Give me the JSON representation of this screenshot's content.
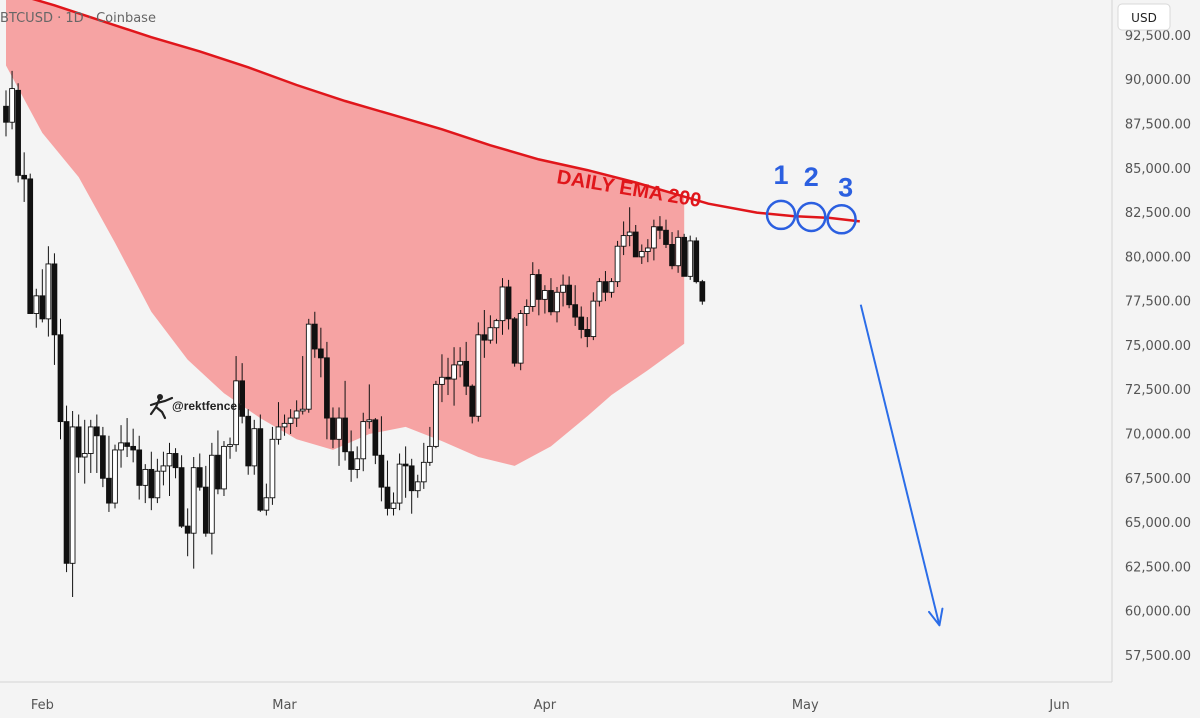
{
  "header": {
    "symbol": "BTCUSD",
    "timeframe": "1D",
    "exchange": "Coinbase",
    "separator": "·"
  },
  "currency": "USD",
  "watermark": "@rektfencer",
  "chart_data": {
    "type": "candlestick",
    "x_tick_labels": [
      "Feb",
      "Mar",
      "Apr",
      "May",
      "Jun"
    ],
    "y_tick_labels": [
      "92,500.00",
      "90,000.00",
      "87,500.00",
      "85,000.00",
      "82,500.00",
      "80,000.00",
      "77,500.00",
      "75,000.00",
      "72,500.00",
      "70,000.00",
      "67,500.00",
      "65,000.00",
      "62,500.00",
      "60,000.00",
      "57,500.00"
    ],
    "ylim": [
      56000,
      94500
    ],
    "grid": false,
    "candle_colors": {
      "up": "#ffffff",
      "down": "#111111",
      "outline": "#111111"
    },
    "candles_ohlc": [
      [
        88500,
        89400,
        86800,
        87600
      ],
      [
        87600,
        90500,
        87200,
        89500
      ],
      [
        89400,
        89800,
        84200,
        84600
      ],
      [
        84600,
        85900,
        83100,
        84400
      ],
      [
        84400,
        84700,
        76800,
        76800
      ],
      [
        76800,
        78200,
        76000,
        77800
      ],
      [
        77800,
        79300,
        76300,
        76500
      ],
      [
        76500,
        80600,
        75500,
        79600
      ],
      [
        79600,
        80200,
        73900,
        75600
      ],
      [
        75600,
        76500,
        69700,
        70700
      ],
      [
        70700,
        71600,
        62200,
        62700
      ],
      [
        62700,
        71300,
        60800,
        70400
      ],
      [
        70400,
        71100,
        67800,
        68700
      ],
      [
        68700,
        70800,
        67200,
        68900
      ],
      [
        68900,
        70800,
        67800,
        70400
      ],
      [
        70400,
        71100,
        67800,
        69900
      ],
      [
        69900,
        70400,
        67000,
        67500
      ],
      [
        67500,
        69900,
        65600,
        66100
      ],
      [
        66100,
        69400,
        65800,
        69100
      ],
      [
        69100,
        70500,
        68100,
        69500
      ],
      [
        69500,
        70900,
        68700,
        69300
      ],
      [
        69300,
        70300,
        68400,
        69100
      ],
      [
        69100,
        69900,
        66300,
        67100
      ],
      [
        67100,
        68300,
        66100,
        68000
      ],
      [
        68000,
        69000,
        65700,
        66400
      ],
      [
        66400,
        68600,
        66100,
        67900
      ],
      [
        67900,
        69000,
        67100,
        68200
      ],
      [
        68200,
        69500,
        66500,
        68900
      ],
      [
        68900,
        69200,
        67500,
        68100
      ],
      [
        68100,
        68800,
        64700,
        64800
      ],
      [
        64800,
        65800,
        63100,
        64400
      ],
      [
        64400,
        68700,
        62400,
        68100
      ],
      [
        68100,
        68900,
        66800,
        67000
      ],
      [
        67000,
        68200,
        64200,
        64400
      ],
      [
        64400,
        69500,
        63200,
        68800
      ],
      [
        68800,
        70200,
        66600,
        66900
      ],
      [
        66900,
        69600,
        66500,
        69300
      ],
      [
        69300,
        69800,
        68600,
        69400
      ],
      [
        69400,
        74400,
        69000,
        73000
      ],
      [
        73000,
        74000,
        70600,
        71000
      ],
      [
        71000,
        71400,
        67700,
        68200
      ],
      [
        68200,
        70800,
        67700,
        70300
      ],
      [
        70300,
        71100,
        65600,
        65700
      ],
      [
        65700,
        67200,
        65400,
        66400
      ],
      [
        66400,
        70400,
        66000,
        69700
      ],
      [
        69700,
        71800,
        69400,
        70400
      ],
      [
        70400,
        71100,
        69900,
        70600
      ],
      [
        70600,
        71400,
        70000,
        70900
      ],
      [
        70900,
        71900,
        70400,
        71300
      ],
      [
        71300,
        74400,
        71100,
        71400
      ],
      [
        71400,
        76500,
        71200,
        76200
      ],
      [
        76200,
        76900,
        74300,
        74800
      ],
      [
        74800,
        76000,
        73200,
        74300
      ],
      [
        74300,
        75200,
        69700,
        70900
      ],
      [
        70900,
        71500,
        69200,
        69700
      ],
      [
        69700,
        71500,
        68200,
        70900
      ],
      [
        70900,
        73000,
        68500,
        69000
      ],
      [
        69000,
        70200,
        67300,
        68000
      ],
      [
        68000,
        69300,
        67500,
        68600
      ],
      [
        68600,
        71200,
        67900,
        70700
      ],
      [
        70700,
        72800,
        70300,
        70800
      ],
      [
        70800,
        70900,
        68300,
        68800
      ],
      [
        68800,
        71000,
        66200,
        67000
      ],
      [
        67000,
        68500,
        65400,
        65800
      ],
      [
        65800,
        66700,
        65400,
        66100
      ],
      [
        66100,
        68900,
        65700,
        68300
      ],
      [
        68300,
        69300,
        66400,
        68200
      ],
      [
        68200,
        68600,
        65500,
        66800
      ],
      [
        66800,
        67700,
        66400,
        67300
      ],
      [
        67300,
        69500,
        66900,
        68400
      ],
      [
        68400,
        70400,
        68200,
        69300
      ],
      [
        69300,
        73000,
        69200,
        72800
      ],
      [
        72800,
        74500,
        71800,
        73200
      ],
      [
        73200,
        74300,
        72200,
        73100
      ],
      [
        73100,
        74900,
        71600,
        73900
      ],
      [
        73900,
        74900,
        73200,
        74100
      ],
      [
        74100,
        75200,
        72200,
        72700
      ],
      [
        72700,
        72800,
        70600,
        71000
      ],
      [
        71000,
        76300,
        70700,
        75600
      ],
      [
        75600,
        77000,
        74300,
        75300
      ],
      [
        75300,
        76700,
        75100,
        76000
      ],
      [
        76000,
        76500,
        75100,
        76400
      ],
      [
        76400,
        78800,
        75600,
        78300
      ],
      [
        78300,
        78700,
        75900,
        76500
      ],
      [
        76500,
        76600,
        73800,
        74000
      ],
      [
        74000,
        77000,
        73600,
        76800
      ],
      [
        76800,
        77600,
        76100,
        77200
      ],
      [
        77200,
        79700,
        76900,
        79000
      ],
      [
        79000,
        79300,
        76700,
        77600
      ],
      [
        77600,
        78400,
        76800,
        78100
      ],
      [
        78100,
        78800,
        76700,
        76900
      ],
      [
        76900,
        78300,
        76300,
        78000
      ],
      [
        78000,
        79000,
        77200,
        78400
      ],
      [
        78400,
        78900,
        77100,
        77300
      ],
      [
        77300,
        78400,
        76100,
        76600
      ],
      [
        76600,
        77200,
        75400,
        75900
      ],
      [
        75900,
        76600,
        74900,
        75500
      ],
      [
        75500,
        78000,
        75300,
        77500
      ],
      [
        77500,
        78800,
        77200,
        78600
      ],
      [
        78600,
        79200,
        77500,
        78000
      ],
      [
        78000,
        78800,
        77700,
        78600
      ],
      [
        78600,
        80900,
        78300,
        80600
      ],
      [
        80600,
        82000,
        80100,
        81200
      ],
      [
        81200,
        82800,
        80600,
        81400
      ],
      [
        81400,
        81800,
        80000,
        80000
      ],
      [
        80000,
        80700,
        79600,
        80300
      ],
      [
        80300,
        81000,
        79700,
        80500
      ],
      [
        80500,
        82100,
        79800,
        81700
      ],
      [
        81700,
        82300,
        81000,
        81500
      ],
      [
        81500,
        82100,
        80500,
        80700
      ],
      [
        80700,
        81400,
        79300,
        79500
      ],
      [
        79500,
        81500,
        79100,
        81100
      ],
      [
        81100,
        81300,
        78900,
        78900
      ],
      [
        78900,
        81200,
        78700,
        80900
      ],
      [
        80900,
        81100,
        78500,
        78600
      ],
      [
        78600,
        78700,
        77300,
        77500
      ]
    ],
    "ema200": [
      [
        0,
        95000
      ],
      [
        8,
        94200
      ],
      [
        16,
        93300
      ],
      [
        24,
        92400
      ],
      [
        32,
        91600
      ],
      [
        40,
        90700
      ],
      [
        48,
        89700
      ],
      [
        56,
        88800
      ],
      [
        64,
        88000
      ],
      [
        72,
        87200
      ],
      [
        80,
        86300
      ],
      [
        88,
        85500
      ],
      [
        96,
        84900
      ],
      [
        104,
        84200
      ],
      [
        110,
        83600
      ],
      [
        116,
        83000
      ],
      [
        124,
        82500
      ],
      [
        130,
        82300
      ],
      [
        136,
        82200
      ],
      [
        141,
        82000
      ]
    ],
    "ribbon_lower": [
      [
        0,
        90800
      ],
      [
        6,
        87000
      ],
      [
        12,
        84500
      ],
      [
        18,
        80800
      ],
      [
        24,
        76900
      ],
      [
        30,
        74200
      ],
      [
        36,
        72300
      ],
      [
        42,
        70900
      ],
      [
        48,
        69700
      ],
      [
        54,
        69100
      ],
      [
        60,
        70000
      ],
      [
        66,
        70400
      ],
      [
        72,
        69600
      ],
      [
        78,
        68700
      ],
      [
        84,
        68200
      ],
      [
        90,
        69300
      ],
      [
        96,
        71000
      ],
      [
        100,
        72200
      ],
      [
        106,
        73600
      ],
      [
        112,
        75100
      ]
    ],
    "ribbon_end_index": 112,
    "annotations": [
      {
        "label": "DAILY EMA 200"
      },
      {
        "label": "1",
        "candle_index": 128
      },
      {
        "label": "2",
        "candle_index": 133
      },
      {
        "label": "3",
        "candle_index": 138
      }
    ],
    "projection": {
      "from_index": 141,
      "from_value": 77300,
      "to_index": 153,
      "to_value": 59200,
      "color": "#2b6de8"
    },
    "colors": {
      "ema": "#e0161b",
      "ribbon": "#f6a3a3",
      "circles": "#2b5fe0"
    }
  }
}
